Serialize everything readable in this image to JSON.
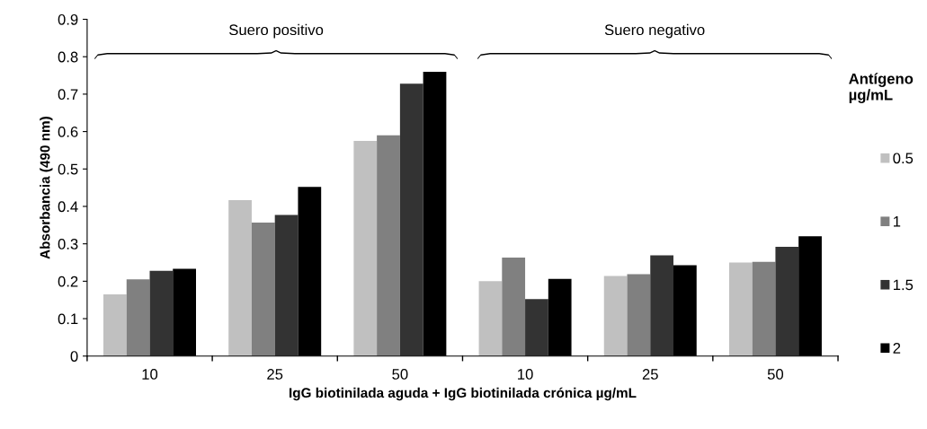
{
  "chart_data": {
    "type": "bar",
    "xlabel": "IgG biotinilada aguda + IgG biotinilada crónica µg/mL",
    "ylabel": "Absorbancia (490 nm)",
    "legend_title": "Antígeno\nµg/mL",
    "categories": [
      "10",
      "25",
      "50",
      "10",
      "25",
      "50"
    ],
    "series": [
      {
        "name": "0.5",
        "color": "#c0c0c0",
        "values": [
          0.165,
          0.417,
          0.575,
          0.2,
          0.214,
          0.25
        ]
      },
      {
        "name": "1",
        "color": "#808080",
        "values": [
          0.205,
          0.357,
          0.59,
          0.263,
          0.219,
          0.252
        ]
      },
      {
        "name": "1.5",
        "color": "#333333",
        "values": [
          0.228,
          0.377,
          0.728,
          0.152,
          0.269,
          0.292
        ]
      },
      {
        "name": "2",
        "color": "#000000",
        "values": [
          0.233,
          0.452,
          0.76,
          0.206,
          0.243,
          0.32
        ]
      }
    ],
    "annotations": [
      "Suero positivo",
      "Suero negativo"
    ],
    "ylim": [
      0,
      0.9
    ],
    "yticks": [
      0,
      0.1,
      0.2,
      0.3,
      0.4,
      0.5,
      0.6,
      0.7,
      0.8,
      0.9
    ],
    "grid": false,
    "legend": "right"
  }
}
